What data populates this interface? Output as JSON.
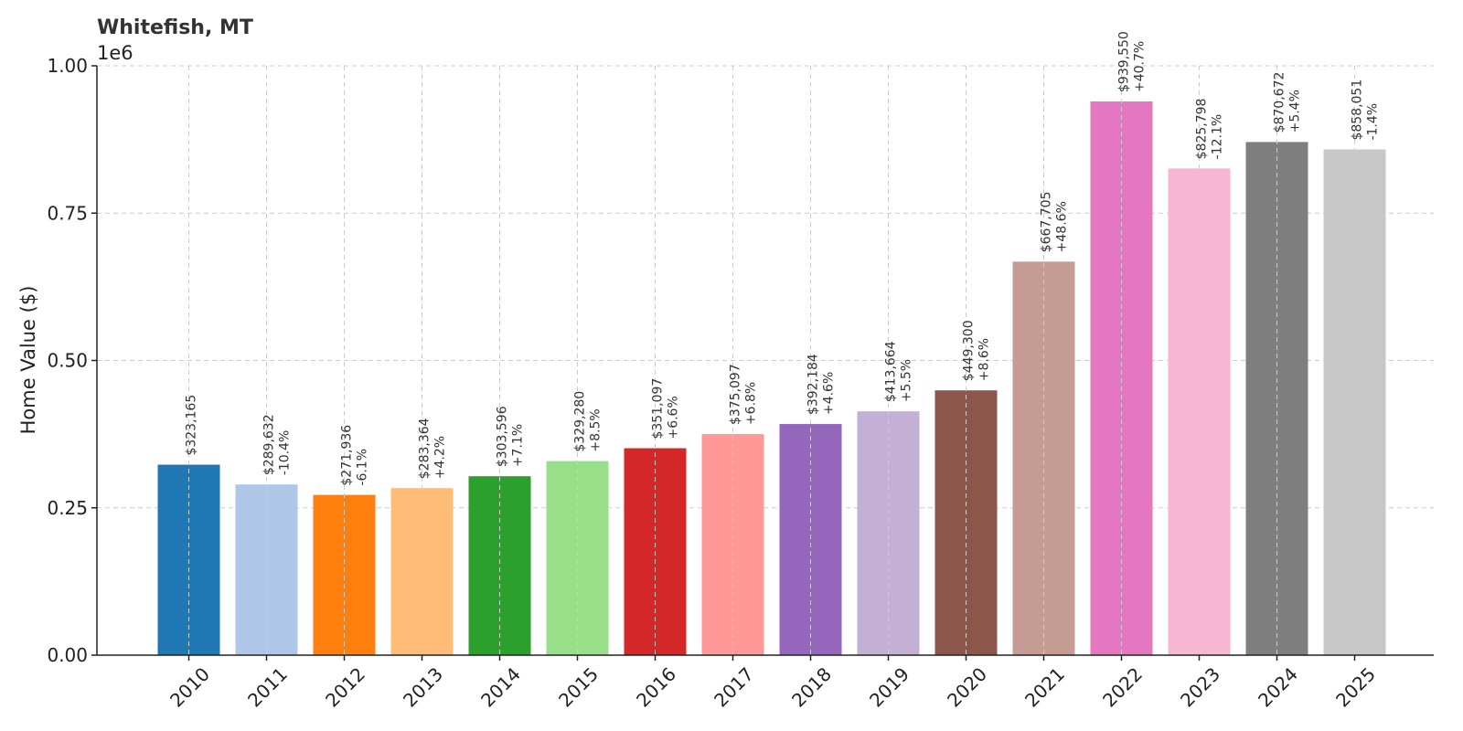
{
  "chart_data": {
    "type": "bar",
    "title": "Whitefish, MT",
    "ylabel": "Home Value ($)",
    "xlabel": "",
    "y_scale_label": "1e6",
    "ylim": [
      0,
      1000000
    ],
    "yticks": [
      0,
      250000,
      500000,
      750000,
      1000000
    ],
    "ytick_labels": [
      "0.00",
      "0.25",
      "0.50",
      "0.75",
      "1.00"
    ],
    "grid": true,
    "categories": [
      "2010",
      "2011",
      "2012",
      "2013",
      "2014",
      "2015",
      "2016",
      "2017",
      "2018",
      "2019",
      "2020",
      "2021",
      "2022",
      "2023",
      "2024",
      "2025"
    ],
    "values": [
      323165,
      289632,
      271936,
      283364,
      303596,
      329280,
      351097,
      375097,
      392184,
      413664,
      449300,
      667705,
      939550,
      825798,
      870672,
      858051
    ],
    "value_labels": [
      "$323,165",
      "$289,632",
      "$271,936",
      "$283,364",
      "$303,596",
      "$329,280",
      "$351,097",
      "$375,097",
      "$392,184",
      "$413,664",
      "$449,300",
      "$667,705",
      "$939,550",
      "$825,798",
      "$870,672",
      "$858,051"
    ],
    "change_labels": [
      "",
      "-10.4%",
      "-6.1%",
      "+4.2%",
      "+7.1%",
      "+8.5%",
      "+6.6%",
      "+6.8%",
      "+4.6%",
      "+5.5%",
      "+8.6%",
      "+48.6%",
      "+40.7%",
      "-12.1%",
      "+5.4%",
      "-1.4%"
    ],
    "colors": [
      "#1f77b4",
      "#aec7e8",
      "#ff7f0e",
      "#ffbb78",
      "#2ca02c",
      "#98df8a",
      "#d62728",
      "#ff9896",
      "#9467bd",
      "#c5b0d5",
      "#8c564b",
      "#c49c94",
      "#e377c2",
      "#f7b6d2",
      "#7f7f7f",
      "#c7c7c7"
    ]
  }
}
